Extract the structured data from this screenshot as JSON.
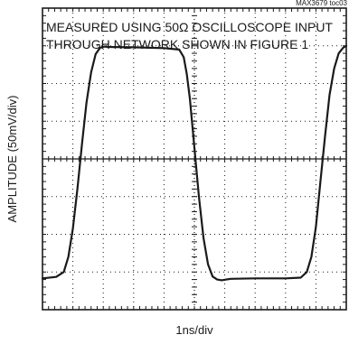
{
  "chart_data": {
    "type": "line",
    "chart_id": "MAX3679 toc03",
    "annotation_line1": "MEASURED USING 50Ω OSCILLOSCOPE INPUT",
    "annotation_line2": "THROUGH NETWORK SHOWN IN FIGURE 1",
    "xlabel": "1ns/div",
    "ylabel": "AMPLITUDE (50mV/div)",
    "grid": true,
    "x_unit": "div",
    "y_unit": "div",
    "xlim": [
      0,
      10
    ],
    "ylim": [
      -4,
      4
    ],
    "series": [
      {
        "x": [
          0,
          0.45,
          0.7,
          0.85,
          1.0,
          1.15,
          1.3,
          1.45,
          1.6,
          1.75,
          1.9,
          2.05,
          2.2,
          3.0,
          4.0,
          4.5,
          4.65,
          4.75,
          4.85,
          5.0,
          5.15,
          5.3,
          5.45,
          5.6,
          5.75,
          5.9,
          6.05,
          6.2,
          7.0,
          8.0,
          8.5,
          8.7,
          8.85,
          9.0,
          9.15,
          9.3,
          9.45,
          9.6,
          9.75,
          9.9,
          10.0
        ],
        "y": [
          -3.17,
          -3.13,
          -3.0,
          -2.6,
          -1.85,
          -0.8,
          0.4,
          1.5,
          2.3,
          2.78,
          2.95,
          2.98,
          2.97,
          2.96,
          2.94,
          2.9,
          2.7,
          2.25,
          1.6,
          0.3,
          -1.0,
          -2.1,
          -2.8,
          -3.12,
          -3.2,
          -3.22,
          -3.2,
          -3.18,
          -3.17,
          -3.17,
          -3.15,
          -3.0,
          -2.6,
          -1.8,
          -0.6,
          0.6,
          1.7,
          2.4,
          2.8,
          2.95,
          3.0
        ]
      }
    ]
  }
}
